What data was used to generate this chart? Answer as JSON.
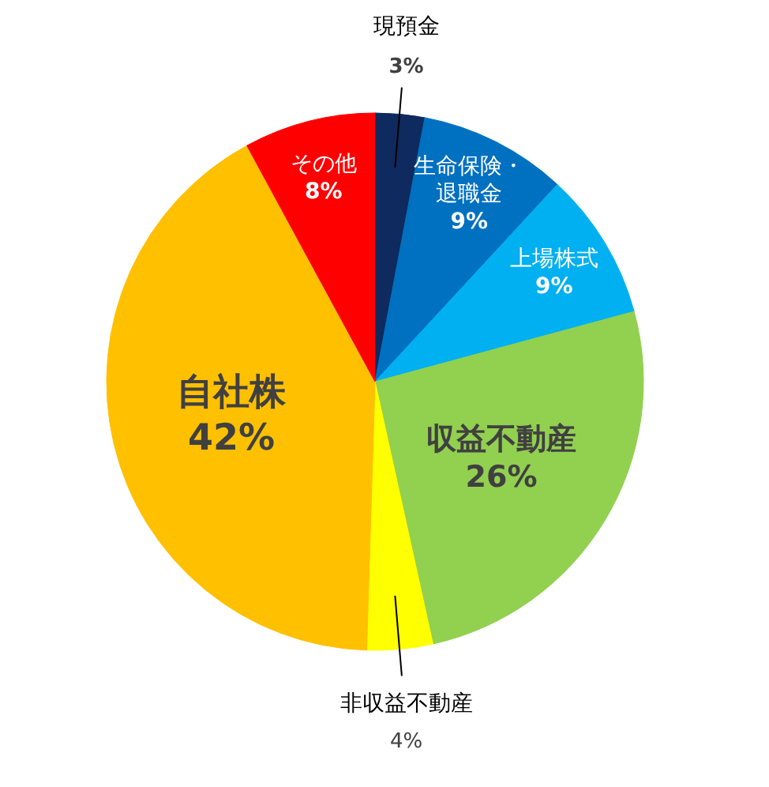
{
  "chart_data": {
    "type": "pie",
    "categories": [
      "現預金",
      "生命保険・退職金",
      "上場株式",
      "収益不動産",
      "非収益不動産",
      "自社株",
      "その他"
    ],
    "values": [
      3,
      9,
      9,
      26,
      4,
      42,
      8
    ],
    "colors": [
      "#0f2a5e",
      "#0070c0",
      "#00b0f0",
      "#92d050",
      "#ffff00",
      "#ffc000",
      "#ff0000"
    ],
    "value_labels": [
      "3%",
      "9%",
      "9%",
      "26%",
      "4%",
      "42%",
      "8%"
    ]
  }
}
